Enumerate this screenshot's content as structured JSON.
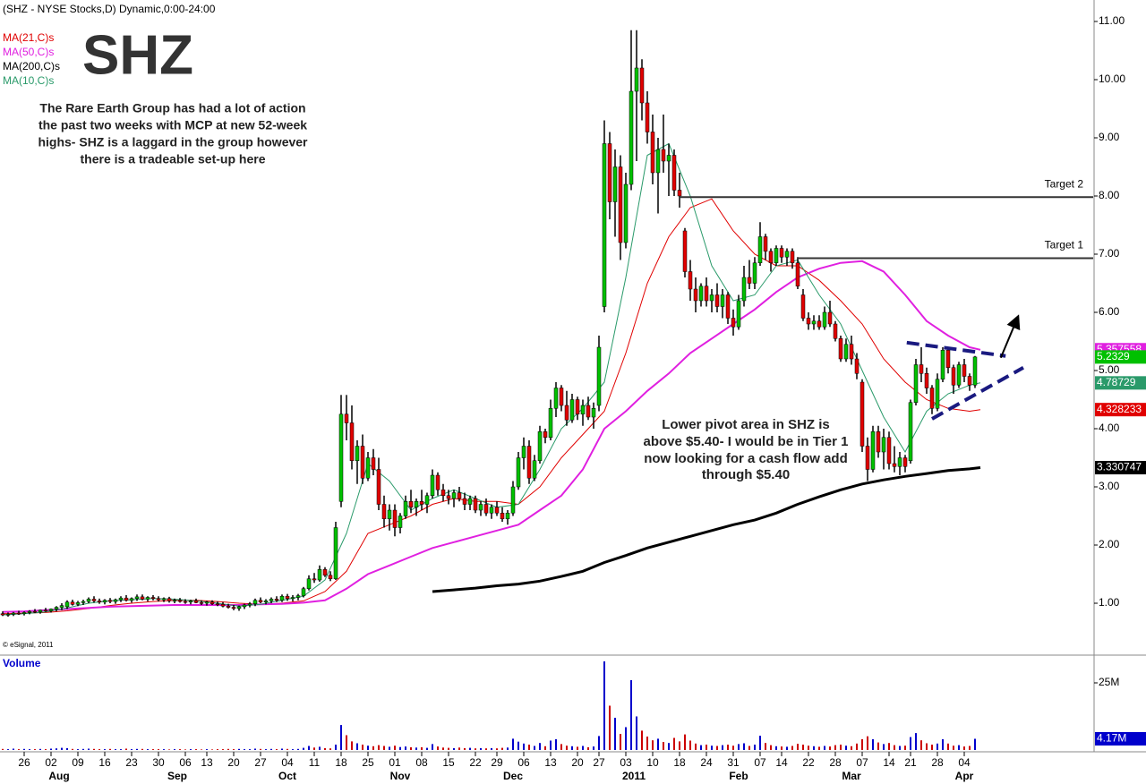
{
  "chart_data": {
    "type": "candlestick",
    "title": "(SHZ - NYSE Stocks,D) Dynamic,0:00-24:00",
    "symbol": "SHZ",
    "copyright": "© eSignal, 2011",
    "commentary": [
      "The Rare Earth Group has had a lot of action",
      "the past two weeks with MCP at new 52-week",
      "highs- SHZ is a laggard in the group however",
      "there is a tradeable set-up here"
    ],
    "commentary2": [
      "Lower pivot area in SHZ is",
      "above $5.40- I would be in Tier 1",
      "now looking for a cash flow add",
      "through $5.40"
    ],
    "up_color": "#00c000",
    "down_color": "#e00000",
    "open": [
      0.82,
      0.8,
      0.81,
      0.83,
      0.82,
      0.84,
      0.86,
      0.85,
      0.88,
      0.87,
      0.9,
      0.93,
      0.94,
      1.02,
      0.98,
      1.01,
      1.03,
      1.07,
      1.04,
      1.02,
      1.05,
      1.03,
      1.06,
      1.09,
      1.05,
      1.08,
      1.11,
      1.07,
      1.1,
      1.08,
      1.06,
      1.08,
      1.04,
      1.05,
      1.03,
      1.02,
      1.04,
      1.01,
      1.0,
      1.02,
      0.99,
      0.98,
      0.95,
      0.93,
      0.91,
      0.94,
      0.97,
      0.99,
      1.05,
      1.02,
      1.04,
      1.07,
      1.05,
      1.12,
      1.08,
      1.1,
      1.13,
      1.25,
      1.42,
      1.4,
      1.58,
      1.48,
      1.42,
      2.75,
      4.25,
      4.1,
      3.45,
      3.7,
      3.15,
      3.5,
      3.3,
      2.7,
      2.45,
      2.6,
      2.3,
      2.5,
      2.75,
      2.65,
      2.75,
      2.7,
      2.85,
      3.2,
      2.95,
      2.85,
      2.8,
      2.9,
      2.8,
      2.7,
      2.8,
      2.6,
      2.7,
      2.55,
      2.65,
      2.55,
      2.45,
      2.55,
      3.0,
      3.5,
      3.7,
      3.15,
      3.45,
      3.95,
      3.85,
      4.35,
      4.7,
      4.4,
      4.15,
      4.5,
      4.25,
      4.4,
      4.2,
      4.4,
      6.1,
      8.9,
      7.9,
      8.5,
      7.2,
      8.2,
      9.8,
      10.2,
      9.6,
      9.1,
      8.4,
      8.8,
      8.6,
      8.7,
      8.1,
      7.4,
      6.7,
      6.4,
      6.2,
      6.45,
      6.2,
      6.3,
      6.1,
      6.3,
      5.9,
      5.75,
      6.2,
      6.6,
      6.5,
      6.85,
      7.3,
      7.05,
      6.85,
      7.1,
      6.95,
      7.05,
      6.85,
      6.3,
      5.9,
      5.8,
      5.85,
      5.75,
      6.0,
      5.8,
      5.55,
      5.2,
      5.45,
      5.2,
      4.8,
      3.7,
      3.3,
      3.95,
      3.6,
      3.85,
      3.4,
      3.35,
      3.5,
      3.45,
      4.45,
      5.1,
      4.95,
      4.7,
      4.35,
      4.85,
      5.35,
      5.05,
      4.75,
      5.1,
      4.9,
      4.75
    ],
    "high": [
      0.86,
      0.84,
      0.85,
      0.87,
      0.86,
      0.88,
      0.9,
      0.89,
      0.92,
      0.91,
      0.95,
      1.0,
      1.05,
      1.06,
      1.04,
      1.06,
      1.1,
      1.12,
      1.08,
      1.07,
      1.09,
      1.08,
      1.12,
      1.14,
      1.1,
      1.15,
      1.15,
      1.12,
      1.14,
      1.12,
      1.1,
      1.11,
      1.08,
      1.09,
      1.07,
      1.06,
      1.08,
      1.05,
      1.04,
      1.05,
      1.03,
      1.02,
      0.99,
      0.97,
      0.96,
      0.99,
      1.02,
      1.08,
      1.1,
      1.07,
      1.1,
      1.12,
      1.15,
      1.16,
      1.14,
      1.16,
      1.28,
      1.48,
      1.52,
      1.65,
      1.62,
      1.55,
      2.4,
      4.58,
      4.58,
      4.4,
      3.8,
      3.9,
      3.6,
      3.65,
      3.5,
      2.85,
      2.7,
      2.7,
      2.55,
      2.85,
      2.95,
      2.8,
      2.95,
      2.9,
      3.3,
      3.25,
      3.05,
      2.95,
      2.95,
      3.0,
      2.9,
      2.85,
      2.85,
      2.75,
      2.8,
      2.7,
      2.75,
      2.65,
      2.6,
      3.1,
      3.6,
      3.85,
      3.8,
      3.55,
      4.05,
      4.0,
      4.5,
      4.8,
      4.75,
      4.65,
      4.6,
      4.55,
      4.5,
      4.55,
      4.45,
      5.6,
      9.3,
      9.1,
      8.8,
      8.7,
      8.4,
      10.85,
      10.85,
      10.35,
      9.8,
      9.4,
      9.0,
      9.4,
      8.9,
      8.8,
      8.4,
      7.45,
      6.9,
      6.6,
      6.5,
      6.6,
      6.4,
      6.5,
      6.4,
      6.35,
      6.05,
      6.3,
      6.8,
      6.9,
      6.95,
      7.55,
      7.35,
      7.1,
      7.15,
      7.15,
      7.1,
      7.1,
      6.95,
      6.4,
      6.0,
      5.95,
      5.95,
      6.1,
      6.2,
      5.85,
      5.6,
      5.55,
      5.6,
      5.3,
      4.85,
      3.85,
      4.05,
      4.05,
      4.0,
      3.95,
      3.7,
      3.6,
      3.55,
      4.5,
      5.2,
      5.4,
      5.05,
      4.75,
      4.95,
      5.4,
      5.4,
      5.1,
      5.15,
      5.2,
      4.95,
      5.25
    ],
    "low": [
      0.78,
      0.77,
      0.78,
      0.8,
      0.79,
      0.81,
      0.83,
      0.82,
      0.85,
      0.84,
      0.86,
      0.88,
      0.9,
      0.96,
      0.95,
      0.97,
      1.0,
      1.01,
      0.99,
      0.98,
      1.0,
      0.99,
      1.02,
      1.03,
      1.01,
      1.04,
      1.05,
      1.03,
      1.05,
      1.03,
      1.02,
      1.01,
      1.0,
      1.01,
      0.99,
      0.98,
      1.0,
      0.97,
      0.96,
      0.97,
      0.95,
      0.93,
      0.91,
      0.88,
      0.87,
      0.9,
      0.93,
      0.95,
      1.0,
      0.98,
      1.0,
      1.02,
      1.02,
      1.04,
      1.03,
      1.05,
      1.1,
      1.22,
      1.35,
      1.37,
      1.45,
      1.38,
      1.4,
      2.65,
      3.8,
      3.3,
      3.05,
      3.05,
      3.1,
      3.2,
      2.6,
      2.3,
      2.25,
      2.15,
      2.2,
      2.45,
      2.55,
      2.5,
      2.6,
      2.55,
      2.8,
      2.85,
      2.75,
      2.7,
      2.65,
      2.75,
      2.6,
      2.6,
      2.55,
      2.5,
      2.5,
      2.45,
      2.5,
      2.4,
      2.35,
      2.5,
      2.95,
      3.3,
      3.05,
      3.1,
      3.4,
      3.75,
      3.8,
      4.2,
      4.3,
      4.05,
      4.1,
      4.15,
      4.05,
      4.15,
      4.0,
      4.3,
      6.0,
      7.6,
      7.3,
      6.9,
      7.1,
      8.1,
      8.6,
      9.3,
      8.9,
      8.2,
      7.7,
      8.4,
      8.0,
      8.0,
      7.8,
      6.6,
      6.2,
      6.0,
      6.1,
      6.1,
      6.0,
      6.0,
      5.9,
      5.8,
      5.6,
      5.7,
      6.1,
      6.4,
      6.4,
      6.8,
      6.9,
      6.7,
      6.8,
      6.85,
      6.8,
      6.75,
      6.4,
      5.85,
      5.7,
      5.7,
      5.7,
      5.7,
      5.75,
      5.5,
      5.15,
      5.15,
      5.1,
      4.85,
      3.6,
      3.1,
      3.25,
      3.5,
      3.3,
      3.3,
      3.25,
      3.2,
      3.25,
      3.4,
      4.4,
      4.8,
      4.6,
      4.25,
      4.3,
      4.8,
      4.95,
      4.6,
      4.7,
      4.8,
      4.65,
      4.7
    ],
    "close": [
      0.8,
      0.81,
      0.83,
      0.82,
      0.84,
      0.86,
      0.85,
      0.88,
      0.87,
      0.9,
      0.93,
      0.96,
      1.02,
      0.98,
      1.01,
      1.03,
      1.07,
      1.04,
      1.02,
      1.05,
      1.03,
      1.06,
      1.09,
      1.05,
      1.08,
      1.11,
      1.07,
      1.1,
      1.08,
      1.06,
      1.08,
      1.04,
      1.05,
      1.03,
      1.02,
      1.04,
      1.01,
      1.0,
      1.02,
      0.99,
      0.98,
      0.95,
      0.93,
      0.91,
      0.94,
      0.97,
      0.99,
      1.05,
      1.02,
      1.04,
      1.07,
      1.05,
      1.12,
      1.08,
      1.1,
      1.13,
      1.25,
      1.42,
      1.4,
      1.58,
      1.48,
      1.42,
      2.3,
      4.25,
      4.1,
      3.45,
      3.7,
      3.15,
      3.5,
      3.3,
      2.7,
      2.45,
      2.6,
      2.3,
      2.5,
      2.75,
      2.65,
      2.75,
      2.7,
      2.85,
      3.2,
      2.95,
      2.85,
      2.8,
      2.9,
      2.8,
      2.7,
      2.8,
      2.6,
      2.7,
      2.55,
      2.65,
      2.55,
      2.45,
      2.55,
      3.0,
      3.5,
      3.7,
      3.15,
      3.45,
      3.95,
      3.85,
      4.35,
      4.7,
      4.4,
      4.15,
      4.5,
      4.25,
      4.4,
      4.2,
      4.35,
      5.4,
      8.9,
      7.9,
      8.5,
      7.2,
      8.2,
      9.8,
      10.2,
      9.6,
      9.1,
      8.4,
      8.8,
      8.6,
      8.7,
      8.1,
      8.0,
      6.7,
      6.4,
      6.2,
      6.45,
      6.2,
      6.3,
      6.1,
      6.3,
      5.9,
      5.75,
      6.2,
      6.6,
      6.5,
      6.85,
      7.3,
      7.05,
      6.85,
      7.1,
      6.95,
      7.05,
      6.85,
      6.45,
      5.9,
      5.8,
      5.85,
      5.75,
      6.0,
      5.8,
      5.55,
      5.2,
      5.45,
      5.2,
      4.95,
      3.7,
      3.3,
      3.95,
      3.6,
      3.85,
      3.4,
      3.35,
      3.5,
      3.35,
      4.45,
      5.1,
      4.95,
      4.7,
      4.35,
      4.85,
      5.35,
      5.05,
      4.75,
      5.1,
      4.9,
      4.75,
      5.2329
    ],
    "volume_label": "Volume",
    "volume": [
      0.4,
      0.3,
      0.5,
      0.3,
      0.4,
      0.3,
      0.3,
      0.4,
      0.3,
      0.5,
      0.6,
      0.8,
      0.7,
      0.4,
      0.3,
      0.4,
      0.5,
      0.4,
      0.3,
      0.3,
      0.4,
      0.3,
      0.3,
      0.5,
      0.3,
      0.4,
      0.4,
      0.3,
      0.3,
      0.3,
      0.3,
      0.2,
      0.3,
      0.3,
      0.2,
      0.3,
      0.3,
      0.2,
      0.3,
      0.2,
      0.3,
      0.3,
      0.4,
      0.3,
      0.4,
      0.3,
      0.3,
      0.5,
      0.4,
      0.3,
      0.4,
      0.3,
      0.5,
      0.4,
      0.3,
      0.4,
      0.8,
      1.5,
      0.9,
      1.2,
      0.7,
      0.6,
      2.0,
      9.3,
      5.5,
      3.2,
      2.5,
      2.0,
      1.6,
      1.4,
      1.8,
      1.5,
      1.2,
      1.6,
      1.1,
      1.3,
      1.0,
      0.9,
      1.0,
      0.8,
      2.2,
      1.3,
      0.9,
      0.8,
      0.7,
      0.9,
      0.7,
      0.8,
      0.6,
      0.7,
      0.6,
      0.7,
      0.6,
      0.8,
      0.9,
      4.2,
      3.1,
      2.4,
      2.0,
      1.5,
      2.6,
      1.4,
      3.5,
      4.0,
      2.2,
      1.6,
      1.4,
      1.2,
      1.5,
      1.0,
      1.3,
      5.2,
      33.0,
      16.5,
      12.0,
      6.0,
      8.5,
      26.0,
      12.5,
      7.2,
      5.0,
      3.6,
      4.2,
      3.0,
      2.6,
      4.5,
      3.2,
      5.8,
      3.5,
      2.4,
      1.8,
      2.0,
      1.6,
      1.5,
      1.8,
      2.0,
      1.6,
      2.2,
      2.5,
      1.5,
      2.0,
      5.3,
      2.6,
      1.8,
      1.4,
      1.3,
      1.2,
      1.5,
      2.3,
      2.0,
      1.6,
      1.4,
      1.2,
      1.5,
      1.3,
      1.8,
      2.0,
      1.6,
      1.4,
      2.4,
      4.0,
      5.1,
      4.0,
      2.8,
      2.2,
      2.6,
      1.8,
      1.5,
      1.6,
      4.8,
      6.3,
      3.6,
      2.5,
      2.0,
      2.4,
      4.0,
      2.4,
      1.6,
      1.8,
      1.3,
      1.5,
      4.17
    ],
    "volume_last_label": "4.17M",
    "volume_up_color": "#0000cc",
    "volume_down_color": "#cc0000",
    "volume_ylim": [
      0,
      35
    ],
    "volume_yticks": [
      {
        "value": 25,
        "label": "25M"
      }
    ],
    "ma_x": [
      0,
      4,
      8,
      12,
      16,
      20,
      24,
      28,
      32,
      36,
      40,
      44,
      48,
      52,
      56,
      60,
      64,
      68,
      72,
      76,
      80,
      84,
      88,
      92,
      96,
      100,
      104,
      108,
      112,
      116,
      120,
      124,
      128,
      132,
      136,
      140,
      144,
      148,
      152,
      156,
      160,
      164,
      168,
      172,
      176,
      180,
      182
    ],
    "series": [
      {
        "name": "MA(21,C)s",
        "color": "#e00000",
        "values": [
          0.82,
          0.83,
          0.84,
          0.87,
          0.91,
          0.96,
          1.0,
          1.03,
          1.05,
          1.05,
          1.03,
          1.0,
          0.98,
          1.0,
          1.04,
          1.2,
          1.55,
          2.2,
          2.35,
          2.5,
          2.7,
          2.8,
          2.75,
          2.75,
          2.7,
          3.0,
          3.5,
          3.9,
          4.3,
          5.3,
          6.5,
          7.3,
          7.8,
          7.95,
          7.4,
          7.0,
          6.8,
          6.8,
          6.55,
          6.2,
          5.8,
          5.2,
          4.8,
          4.5,
          4.35,
          4.3,
          4.328233
        ]
      },
      {
        "name": "MA(50,C)s",
        "color": "#e020e0",
        "values": [
          0.85,
          0.86,
          0.88,
          0.9,
          0.92,
          0.94,
          0.95,
          0.96,
          0.97,
          0.97,
          0.97,
          0.97,
          0.98,
          0.99,
          1.01,
          1.05,
          1.25,
          1.5,
          1.65,
          1.8,
          1.95,
          2.05,
          2.15,
          2.25,
          2.35,
          2.6,
          2.85,
          3.3,
          4.0,
          4.3,
          4.65,
          4.95,
          5.3,
          5.55,
          5.8,
          6.05,
          6.35,
          6.6,
          6.75,
          6.85,
          6.88,
          6.7,
          6.3,
          5.85,
          5.6,
          5.4,
          5.357558
        ]
      },
      {
        "name": "MA(200,C)s",
        "color": "#000000",
        "values": [
          null,
          null,
          null,
          null,
          null,
          null,
          null,
          null,
          null,
          null,
          null,
          null,
          null,
          null,
          null,
          null,
          null,
          null,
          null,
          null,
          1.2,
          1.23,
          1.26,
          1.3,
          1.33,
          1.38,
          1.46,
          1.55,
          1.7,
          1.82,
          1.95,
          2.05,
          2.15,
          2.25,
          2.35,
          2.43,
          2.55,
          2.7,
          2.83,
          2.95,
          3.05,
          3.12,
          3.18,
          3.23,
          3.28,
          3.31,
          3.330747
        ]
      },
      {
        "name": "MA(10,C)s",
        "color": "#2a9a6a",
        "values": [
          0.8,
          0.82,
          0.85,
          0.92,
          1.0,
          1.04,
          1.06,
          1.08,
          1.07,
          1.04,
          1.0,
          0.95,
          0.98,
          1.05,
          1.12,
          1.4,
          2.2,
          3.4,
          3.1,
          2.6,
          2.8,
          2.95,
          2.8,
          2.65,
          2.7,
          3.3,
          4.0,
          4.35,
          4.8,
          6.6,
          8.7,
          8.9,
          8.0,
          6.8,
          6.2,
          6.3,
          6.8,
          6.9,
          6.3,
          5.8,
          5.0,
          4.2,
          3.6,
          4.3,
          4.6,
          4.75,
          4.78729
        ]
      }
    ],
    "ylim": [
      0.108,
      11.369
    ],
    "yticks": [
      {
        "value": 1,
        "label": "1.00"
      },
      {
        "value": 2,
        "label": "2.00"
      },
      {
        "value": 3,
        "label": "3.00"
      },
      {
        "value": 4,
        "label": "4.00"
      },
      {
        "value": 5,
        "label": "5.00"
      },
      {
        "value": 6,
        "label": "6.00"
      },
      {
        "value": 7,
        "label": "7.00"
      },
      {
        "value": 8,
        "label": "8.00"
      },
      {
        "value": 9,
        "label": "9.00"
      },
      {
        "value": 10,
        "label": "10.00"
      },
      {
        "value": 11,
        "label": "11.00"
      }
    ],
    "xlim": [
      -0.5,
      202.5
    ],
    "xticks": [
      {
        "value": 4,
        "label": "26"
      },
      {
        "value": 9,
        "label": "02"
      },
      {
        "value": 14,
        "label": "09"
      },
      {
        "value": 19,
        "label": "16"
      },
      {
        "value": 24,
        "label": "23"
      },
      {
        "value": 29,
        "label": "30"
      },
      {
        "value": 34,
        "label": "06"
      },
      {
        "value": 38,
        "label": "13"
      },
      {
        "value": 43,
        "label": "20"
      },
      {
        "value": 48,
        "label": "27"
      },
      {
        "value": 53,
        "label": "04"
      },
      {
        "value": 58,
        "label": "11"
      },
      {
        "value": 63,
        "label": "18"
      },
      {
        "value": 68,
        "label": "25"
      },
      {
        "value": 73,
        "label": "01"
      },
      {
        "value": 78,
        "label": "08"
      },
      {
        "value": 83,
        "label": "15"
      },
      {
        "value": 88,
        "label": "22"
      },
      {
        "value": 92,
        "label": "29"
      },
      {
        "value": 97,
        "label": "06"
      },
      {
        "value": 102,
        "label": "13"
      },
      {
        "value": 107,
        "label": "20"
      },
      {
        "value": 111,
        "label": "27"
      },
      {
        "value": 116,
        "label": "03"
      },
      {
        "value": 121,
        "label": "10"
      },
      {
        "value": 126,
        "label": "18"
      },
      {
        "value": 131,
        "label": "24"
      },
      {
        "value": 136,
        "label": "31"
      },
      {
        "value": 141,
        "label": "07"
      },
      {
        "value": 145,
        "label": "14"
      },
      {
        "value": 150,
        "label": "22"
      },
      {
        "value": 155,
        "label": "28"
      },
      {
        "value": 160,
        "label": "07"
      },
      {
        "value": 165,
        "label": "14"
      },
      {
        "value": 169,
        "label": "21"
      },
      {
        "value": 174,
        "label": "28"
      },
      {
        "value": 179,
        "label": "04"
      }
    ],
    "month_labels": [
      {
        "value": 10.5,
        "label": "Aug"
      },
      {
        "value": 32.5,
        "label": "Sep"
      },
      {
        "value": 53,
        "label": "Oct"
      },
      {
        "value": 74,
        "label": "Nov"
      },
      {
        "value": 95,
        "label": "Dec"
      },
      {
        "value": 117.5,
        "label": "2011"
      },
      {
        "value": 137,
        "label": "Feb"
      },
      {
        "value": 158,
        "label": "Mar"
      },
      {
        "value": 179,
        "label": "Apr"
      }
    ],
    "targets": [
      {
        "label": "Target 2",
        "value": 7.98,
        "x_start": 126
      },
      {
        "label": "Target 1",
        "value": 6.93,
        "x_start": 148
      }
    ],
    "trendline_color": "#1a1a80",
    "trendlines": [
      {
        "x": [
          168.3,
          186.7
        ],
        "y": [
          5.48,
          5.25
        ]
      },
      {
        "x": [
          173,
          190
        ],
        "y": [
          4.17,
          5.05
        ]
      }
    ],
    "arrow": {
      "x": [
        185.8,
        188.8
      ],
      "y": [
        5.22,
        5.88
      ]
    }
  }
}
